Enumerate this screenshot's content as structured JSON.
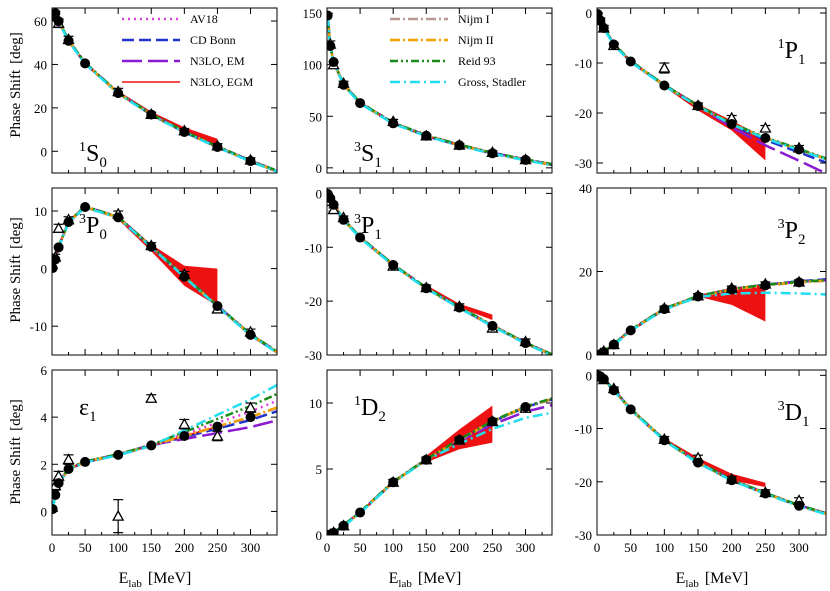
{
  "figure": {
    "ylabel_text": "Phase Shift",
    "ylabel_unit": "[deg]",
    "xlabel_main": "E",
    "xlabel_sub": "lab",
    "xlabel_unit": "[MeV]"
  },
  "legend": {
    "left": [
      {
        "key": "av18",
        "label": "AV18",
        "color": "#e040e0",
        "dash": "2,4",
        "width": 2.5
      },
      {
        "key": "cdbonn",
        "label": "CD Bonn",
        "color": "#2233cc",
        "dash": "12,5",
        "width": 2.5
      },
      {
        "key": "n3lo_em",
        "label": "N3LO, EM",
        "color": "#8a1ad0",
        "dash": "20,6",
        "width": 2.5
      },
      {
        "key": "n3lo_egm",
        "label": "N3LO, EGM",
        "color": "#ee1111",
        "dash": "",
        "width": 1.5
      }
    ],
    "right": [
      {
        "key": "nijm1",
        "label": "Nijm I",
        "color": "#b89890",
        "dash": "10,3,2,3",
        "width": 2.5
      },
      {
        "key": "nijm2",
        "label": "Nijm II",
        "color": "#f0a000",
        "dash": "10,3,2,3",
        "width": 2.5
      },
      {
        "key": "reid93",
        "label": "Reid 93",
        "color": "#1a8a1a",
        "dash": "8,3,2,3,2,3",
        "width": 2.5
      },
      {
        "key": "gross",
        "label": "Gross, Stadler",
        "color": "#22ddee",
        "dash": "10,4,2,4",
        "width": 2.5
      }
    ]
  },
  "chart_data": [
    {
      "type": "line",
      "panel": "1S0",
      "label_sup": "1",
      "label_main": "S",
      "label_sub": "0",
      "xlim": [
        0,
        340
      ],
      "ylim": [
        -10,
        66
      ],
      "xticks": [
        0,
        50,
        100,
        150,
        200,
        250,
        300
      ],
      "yticks": [
        0,
        20,
        40,
        60
      ],
      "x": [
        1,
        5,
        10,
        25,
        50,
        100,
        150,
        200,
        250,
        300,
        340
      ],
      "curve": [
        62.1,
        63.6,
        60.0,
        50.9,
        40.5,
        26.8,
        16.9,
        8.9,
        2.0,
        -4.5,
        -9.2
      ],
      "band_x": [
        100,
        150,
        200,
        250
      ],
      "band_low": [
        26.8,
        16.9,
        8.9,
        2.0
      ],
      "band_high": [
        27.8,
        18.3,
        11.0,
        5.8
      ],
      "circles_x": [
        1,
        5,
        10,
        25,
        50,
        100,
        150,
        200,
        250,
        300
      ],
      "circles_y": [
        62.1,
        63.6,
        59.9,
        50.9,
        40.5,
        26.8,
        16.9,
        8.9,
        2.0,
        -4.5
      ],
      "triangles_x": [
        5,
        10,
        25,
        100,
        150,
        200,
        250,
        300
      ],
      "triangles_y": [
        63.0,
        59.0,
        51.5,
        27.5,
        17.0,
        9.5,
        2.5,
        -4.0
      ],
      "triangles_err": [
        1.5,
        2.0,
        1.5,
        1.5,
        1.0,
        1.0,
        1.0,
        1.0
      ]
    },
    {
      "type": "line",
      "panel": "3S1",
      "label_sup": "3",
      "label_main": "S",
      "label_sub": "1",
      "xlim": [
        0,
        340
      ],
      "ylim": [
        -5,
        155
      ],
      "xticks": [
        0,
        50,
        100,
        150,
        200,
        250,
        300
      ],
      "yticks": [
        0,
        50,
        100,
        150
      ],
      "x": [
        1,
        5,
        10,
        25,
        50,
        100,
        150,
        200,
        250,
        300,
        340
      ],
      "curve": [
        147.7,
        118.2,
        102.6,
        80.6,
        62.8,
        43.2,
        31.1,
        21.9,
        14.1,
        7.7,
        3.0
      ],
      "band_x": [],
      "band_low": [],
      "band_high": [],
      "circles_x": [
        1,
        5,
        10,
        25,
        50,
        100,
        150,
        200,
        250,
        300
      ],
      "circles_y": [
        147.7,
        118.2,
        102.6,
        80.6,
        62.8,
        43.2,
        31.1,
        21.9,
        14.1,
        7.7
      ],
      "triangles_x": [
        5,
        10,
        25,
        100,
        150,
        200,
        250,
        300
      ],
      "triangles_y": [
        120.0,
        100.0,
        82.0,
        45.0,
        31.0,
        22.0,
        15.0,
        8.0
      ],
      "triangles_err": [
        3,
        3,
        2,
        2,
        1.5,
        1.5,
        1.5,
        1.5
      ]
    },
    {
      "type": "line",
      "panel": "1P1",
      "label_sup": "1",
      "label_main": "P",
      "label_sub": "1",
      "xlim": [
        0,
        340
      ],
      "ylim": [
        -32,
        1
      ],
      "xticks": [
        0,
        50,
        100,
        150,
        200,
        250,
        300
      ],
      "yticks": [
        -30,
        -20,
        -10,
        0
      ],
      "x": [
        1,
        5,
        10,
        25,
        50,
        100,
        150,
        200,
        250,
        300,
        340
      ],
      "curve": [
        -0.2,
        -1.5,
        -3.0,
        -6.3,
        -9.7,
        -14.5,
        -18.6,
        -22.2,
        -25.0,
        -27.3,
        -29.2
      ],
      "band_x": [
        100,
        150,
        200,
        250
      ],
      "band_low": [
        -14.8,
        -19.5,
        -23.5,
        -29.5
      ],
      "band_high": [
        -14.2,
        -18.2,
        -21.5,
        -25.0
      ],
      "circles_x": [
        1,
        5,
        10,
        25,
        50,
        100,
        150,
        200,
        250,
        300
      ],
      "circles_y": [
        -0.2,
        -1.5,
        -3.0,
        -6.3,
        -9.7,
        -14.5,
        -18.6,
        -22.2,
        -25.0,
        -27.3
      ],
      "triangles_x": [
        5,
        10,
        25,
        100,
        150,
        200,
        250,
        300
      ],
      "triangles_y": [
        -1.5,
        -3.0,
        -6.5,
        -11.0,
        -18.5,
        -21.0,
        -23.0,
        -27.0
      ],
      "triangles_err": [
        0.5,
        0.5,
        0.5,
        1.0,
        0.5,
        0.5,
        0.5,
        0.5
      ]
    },
    {
      "type": "line",
      "panel": "3P0",
      "label_sup": "3",
      "label_main": "P",
      "label_sub": "0",
      "xlim": [
        0,
        340
      ],
      "ylim": [
        -15,
        14
      ],
      "xticks": [
        0,
        50,
        100,
        150,
        200,
        250,
        300
      ],
      "yticks": [
        -10,
        0,
        10
      ],
      "x": [
        1,
        5,
        10,
        25,
        50,
        100,
        150,
        200,
        250,
        300,
        340
      ],
      "curve": [
        0.1,
        1.6,
        3.7,
        8.1,
        10.7,
        8.9,
        3.8,
        -1.4,
        -6.5,
        -11.5,
        -14.5
      ],
      "band_x": [
        100,
        150,
        200,
        250
      ],
      "band_low": [
        8.5,
        3.0,
        -3.0,
        -6.5
      ],
      "band_high": [
        9.2,
        4.2,
        0.5,
        0.0
      ],
      "circles_x": [
        1,
        5,
        10,
        25,
        50,
        100,
        150,
        200,
        250,
        300
      ],
      "circles_y": [
        0.1,
        1.6,
        3.7,
        8.1,
        10.7,
        8.9,
        3.8,
        -1.4,
        -6.5,
        -11.5
      ],
      "triangles_x": [
        5,
        10,
        25,
        100,
        150,
        200,
        250,
        300
      ],
      "triangles_y": [
        2.0,
        7.0,
        8.5,
        9.5,
        4.0,
        -1.0,
        -7.0,
        -11.0
      ],
      "triangles_err": [
        0.5,
        0.7,
        0.5,
        0.5,
        0.5,
        0.5,
        0.5,
        0.5
      ]
    },
    {
      "type": "line",
      "panel": "3P1",
      "label_sup": "3",
      "label_main": "P",
      "label_sub": "1",
      "xlim": [
        0,
        340
      ],
      "ylim": [
        -30,
        1
      ],
      "xticks": [
        0,
        50,
        100,
        150,
        200,
        250,
        300
      ],
      "yticks": [
        -30,
        -20,
        -10,
        0
      ],
      "x": [
        1,
        5,
        10,
        25,
        50,
        100,
        150,
        200,
        250,
        300,
        340
      ],
      "curve": [
        -0.1,
        -0.9,
        -2.1,
        -4.9,
        -8.2,
        -13.3,
        -17.6,
        -21.2,
        -24.6,
        -27.8,
        -30.0
      ],
      "band_x": [
        150,
        200,
        250
      ],
      "band_low": [
        -17.6,
        -21.2,
        -23.5
      ],
      "band_high": [
        -17.0,
        -20.5,
        -22.5
      ],
      "circles_x": [
        1,
        5,
        10,
        25,
        50,
        100,
        150,
        200,
        250,
        300
      ],
      "circles_y": [
        -0.1,
        -0.9,
        -2.1,
        -4.9,
        -8.2,
        -13.3,
        -17.6,
        -21.2,
        -24.6,
        -27.8
      ],
      "triangles_x": [
        5,
        10,
        25,
        100,
        150,
        200,
        250,
        300
      ],
      "triangles_y": [
        -1.5,
        -3.0,
        -4.5,
        -13.5,
        -17.5,
        -21.0,
        -25.0,
        -27.5
      ],
      "triangles_err": [
        0.3,
        0.3,
        0.3,
        0.5,
        0.5,
        0.5,
        0.5,
        0.5
      ]
    },
    {
      "type": "line",
      "panel": "3P2",
      "label_sup": "3",
      "label_main": "P",
      "label_sub": "2",
      "xlim": [
        0,
        340
      ],
      "ylim": [
        0,
        40
      ],
      "xticks": [
        0,
        50,
        100,
        150,
        200,
        250,
        300
      ],
      "yticks": [
        0,
        20,
        40
      ],
      "x": [
        1,
        5,
        10,
        25,
        50,
        100,
        150,
        200,
        250,
        300,
        340
      ],
      "curve": [
        0.0,
        0.2,
        0.7,
        2.5,
        5.9,
        11.0,
        14.0,
        15.7,
        16.7,
        17.4,
        17.8
      ],
      "band_x": [
        150,
        200,
        250
      ],
      "band_low": [
        14.0,
        12.0,
        8.0
      ],
      "band_high": [
        14.5,
        15.7,
        17.0
      ],
      "circles_x": [
        1,
        5,
        10,
        25,
        50,
        100,
        150,
        200,
        250,
        300
      ],
      "circles_y": [
        0.0,
        0.2,
        0.7,
        2.5,
        5.9,
        11.0,
        14.0,
        15.7,
        16.7,
        17.4
      ],
      "triangles_x": [
        5,
        10,
        25,
        100,
        150,
        200,
        250,
        300
      ],
      "triangles_y": [
        0.3,
        0.9,
        2.5,
        11.2,
        14.2,
        16.0,
        17.0,
        17.5
      ],
      "triangles_err": [
        0.2,
        0.2,
        0.3,
        0.5,
        0.5,
        0.5,
        0.5,
        0.5
      ]
    },
    {
      "type": "line",
      "panel": "eps1",
      "label_sup": "",
      "label_main": "ε",
      "label_sub": "1",
      "xlim": [
        0,
        340
      ],
      "ylim": [
        -1.0,
        6.0
      ],
      "xticks": [
        0,
        50,
        100,
        150,
        200,
        250,
        300
      ],
      "yticks": [
        0,
        2,
        4,
        6
      ],
      "x": [
        1,
        5,
        10,
        25,
        50,
        100,
        150,
        200,
        250,
        300,
        340
      ],
      "curve": [
        0.1,
        0.7,
        1.2,
        1.8,
        2.1,
        2.4,
        2.8,
        3.2,
        3.6,
        4.0,
        4.4
      ],
      "band_x": [],
      "band_low": [],
      "band_high": [],
      "circles_x": [
        1,
        5,
        10,
        25,
        50,
        100,
        150,
        200,
        250,
        300
      ],
      "circles_y": [
        0.1,
        0.7,
        1.2,
        1.8,
        2.1,
        2.4,
        2.8,
        3.2,
        3.6,
        4.0
      ],
      "triangles_x": [
        5,
        10,
        25,
        100,
        150,
        200,
        250,
        300
      ],
      "triangles_y": [
        1.1,
        1.5,
        2.2,
        -0.2,
        4.8,
        3.7,
        3.2,
        4.4
      ],
      "triangles_err": [
        0.2,
        0.2,
        0.2,
        0.7,
        0.15,
        0.2,
        0.2,
        0.2
      ]
    },
    {
      "type": "line",
      "panel": "1D2",
      "label_sup": "1",
      "label_main": "D",
      "label_sub": "2",
      "xlim": [
        0,
        340
      ],
      "ylim": [
        0,
        12.5
      ],
      "xticks": [
        0,
        50,
        100,
        150,
        200,
        250,
        300
      ],
      "yticks": [
        0,
        5,
        10
      ],
      "x": [
        1,
        5,
        10,
        25,
        50,
        100,
        150,
        200,
        250,
        300,
        340
      ],
      "curve": [
        0.0,
        0.04,
        0.16,
        0.7,
        1.7,
        4.0,
        5.7,
        7.2,
        8.6,
        9.7,
        10.3
      ],
      "band_x": [
        150,
        200,
        250
      ],
      "band_low": [
        5.5,
        6.5,
        7.0
      ],
      "band_high": [
        6.0,
        8.0,
        9.8
      ],
      "circles_x": [
        1,
        5,
        10,
        25,
        50,
        100,
        150,
        200,
        250,
        300
      ],
      "circles_y": [
        0.0,
        0.04,
        0.16,
        0.7,
        1.7,
        4.0,
        5.7,
        7.2,
        8.6,
        9.7
      ],
      "triangles_x": [
        5,
        10,
        25,
        100,
        150,
        200,
        250,
        300
      ],
      "triangles_y": [
        0.05,
        0.2,
        0.7,
        4.0,
        5.7,
        7.2,
        8.6,
        9.6
      ],
      "triangles_err": [
        0.05,
        0.05,
        0.1,
        0.2,
        0.2,
        0.2,
        0.2,
        0.2
      ]
    },
    {
      "type": "line",
      "panel": "3D1",
      "label_sup": "3",
      "label_main": "D",
      "label_sub": "1",
      "xlim": [
        0,
        340
      ],
      "ylim": [
        -30,
        1
      ],
      "xticks": [
        0,
        50,
        100,
        150,
        200,
        250,
        300
      ],
      "yticks": [
        -30,
        -20,
        -10,
        0
      ],
      "x": [
        1,
        5,
        10,
        25,
        50,
        100,
        150,
        200,
        250,
        300,
        340
      ],
      "curve": [
        0.0,
        -0.2,
        -0.7,
        -2.8,
        -6.4,
        -12.2,
        -16.4,
        -19.7,
        -22.2,
        -24.5,
        -26.0
      ],
      "band_x": [
        100,
        150,
        200,
        250
      ],
      "band_low": [
        -12.2,
        -16.4,
        -19.7,
        -21.0
      ],
      "band_high": [
        -11.8,
        -15.5,
        -18.5,
        -20.2
      ],
      "circles_x": [
        1,
        5,
        10,
        25,
        50,
        100,
        150,
        200,
        250,
        300
      ],
      "circles_y": [
        0.0,
        -0.2,
        -0.7,
        -2.8,
        -6.4,
        -12.2,
        -16.4,
        -19.7,
        -22.2,
        -24.5
      ],
      "triangles_x": [
        5,
        10,
        25,
        100,
        150,
        200,
        250,
        300
      ],
      "triangles_y": [
        -0.3,
        -0.8,
        -2.5,
        -12.0,
        -15.5,
        -19.5,
        -22.0,
        -23.5
      ],
      "triangles_err": [
        0.2,
        0.2,
        0.3,
        0.5,
        0.5,
        0.5,
        0.5,
        0.5
      ]
    }
  ]
}
